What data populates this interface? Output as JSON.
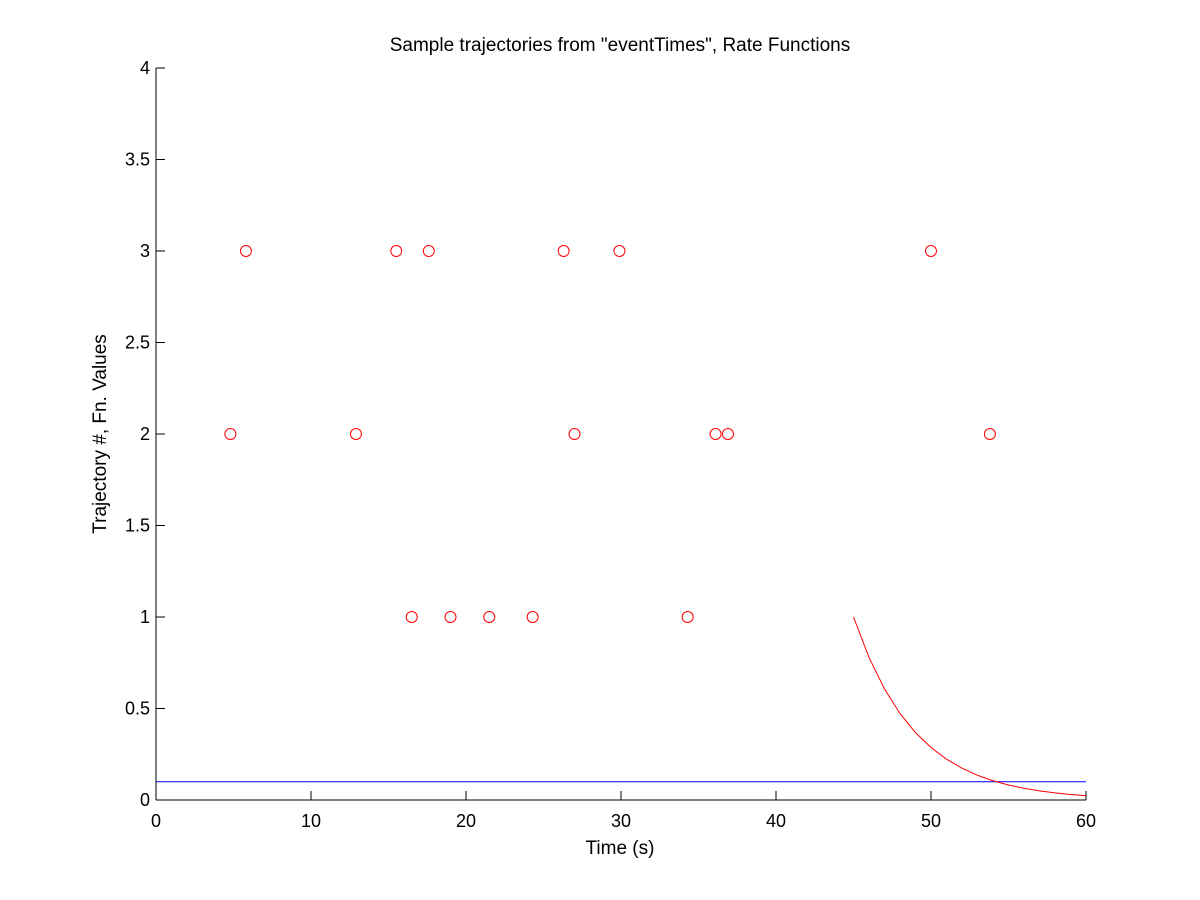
{
  "chart_data": {
    "type": "scatter",
    "title": "Sample trajectories from \"eventTimes\", Rate Functions",
    "xlabel": "Time (s)",
    "ylabel": "Trajectory #, Fn. Values",
    "xlim": [
      0,
      60
    ],
    "ylim": [
      0,
      4
    ],
    "xticks": [
      0,
      10,
      20,
      30,
      40,
      50,
      60
    ],
    "yticks": [
      0,
      0.5,
      1,
      1.5,
      2,
      2.5,
      3,
      3.5,
      4
    ],
    "grid": false,
    "legend": "none",
    "series": [
      {
        "type": "scatter",
        "marker": "circle",
        "color": "#ff0000",
        "points": [
          [
            16.5,
            1
          ],
          [
            19.0,
            1
          ],
          [
            21.5,
            1
          ],
          [
            24.3,
            1
          ],
          [
            34.3,
            1
          ],
          [
            4.8,
            2
          ],
          [
            12.9,
            2
          ],
          [
            27.0,
            2
          ],
          [
            36.1,
            2
          ],
          [
            36.9,
            2
          ],
          [
            53.8,
            2
          ],
          [
            5.8,
            3
          ],
          [
            15.5,
            3
          ],
          [
            17.6,
            3
          ],
          [
            26.3,
            3
          ],
          [
            29.9,
            3
          ],
          [
            50.0,
            3
          ]
        ]
      },
      {
        "type": "line",
        "color": "#0000ff",
        "x": [
          0,
          60
        ],
        "y": [
          0.1,
          0.1
        ]
      },
      {
        "type": "line",
        "color": "#ff0000",
        "x": [
          45,
          46,
          47,
          48,
          49,
          50,
          51,
          52,
          53,
          54,
          55,
          56,
          57,
          58,
          59,
          60
        ],
        "y": [
          1.0,
          0.779,
          0.607,
          0.472,
          0.368,
          0.287,
          0.223,
          0.174,
          0.135,
          0.105,
          0.082,
          0.064,
          0.05,
          0.039,
          0.03,
          0.024
        ]
      }
    ]
  }
}
